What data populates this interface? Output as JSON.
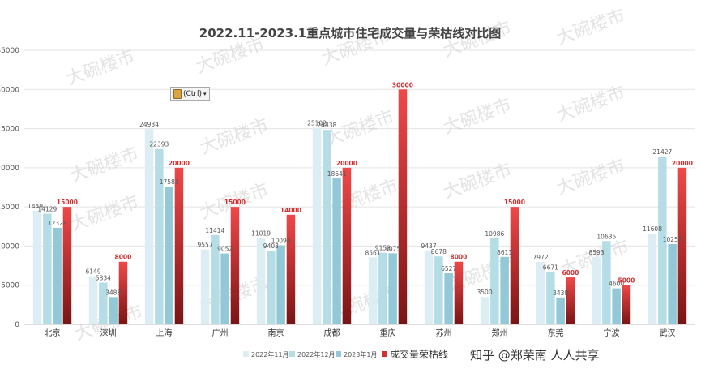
{
  "chart_data": {
    "type": "bar",
    "title": "2022.11-2023.1重点城市住宅成交量与荣枯线对比图",
    "categories": [
      "北京",
      "深圳",
      "上海",
      "广州",
      "南京",
      "成都",
      "重庆",
      "苏州",
      "郑州",
      "东莞",
      "宁波",
      "武汉"
    ],
    "ylim": [
      0,
      35000
    ],
    "yticks": [
      0,
      5000,
      10000,
      15000,
      20000,
      25000,
      30000,
      35000
    ],
    "grid": true,
    "legend_position": "bottom-center",
    "series": [
      {
        "name": "2022年11月",
        "color": "#dceef3",
        "values": [
          14491,
          6149,
          24934,
          9557,
          11019,
          25102,
          8561,
          9437,
          3500,
          7972,
          8593,
          11608
        ]
      },
      {
        "name": "2022年12月",
        "color": "#b4dde6",
        "values": [
          14129,
          5334,
          22393,
          11414,
          9403,
          24838,
          9153,
          8678,
          10986,
          6671,
          10635,
          21427
        ]
      },
      {
        "name": "2023年1月",
        "color": "#93c9d6",
        "values": [
          12328,
          3488,
          17583,
          9052,
          10094,
          18641,
          9075,
          6527,
          8611,
          3439,
          4600,
          10257
        ]
      },
      {
        "name": "成交量荣枯线",
        "color": "#d32f2f",
        "values": [
          15000,
          8000,
          20000,
          15000,
          14000,
          20000,
          30000,
          8000,
          15000,
          6000,
          5000,
          20000
        ]
      }
    ]
  },
  "watermark": "大碗楼市",
  "footer": "知乎 @郑荣南 人人共享",
  "paste_button": {
    "label": "(Ctrl)",
    "arrow": "▾"
  }
}
